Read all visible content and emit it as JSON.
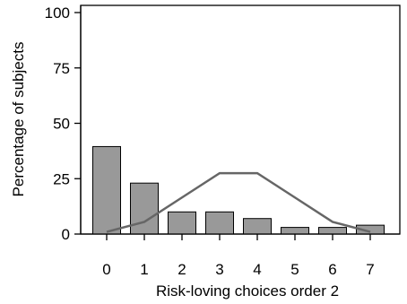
{
  "chart_data": {
    "type": "bar",
    "xlabel": "Risk-loving choices order 2",
    "ylabel": "Percentage of subjects",
    "categories": [
      "0",
      "1",
      "2",
      "3",
      "4",
      "5",
      "6",
      "7"
    ],
    "ylim": [
      0,
      100
    ],
    "yticks": [
      "0",
      "25",
      "50",
      "75",
      "100"
    ],
    "grid": false,
    "series": [
      {
        "values": [
          39.5,
          23,
          10,
          10,
          7,
          3,
          3,
          4
        ],
        "color": "#999999",
        "style": "bar"
      },
      {
        "values": [
          1,
          5.5,
          16.5,
          27.5,
          27.5,
          16.5,
          5.5,
          1
        ],
        "color": "#666666",
        "style": "line"
      }
    ]
  }
}
